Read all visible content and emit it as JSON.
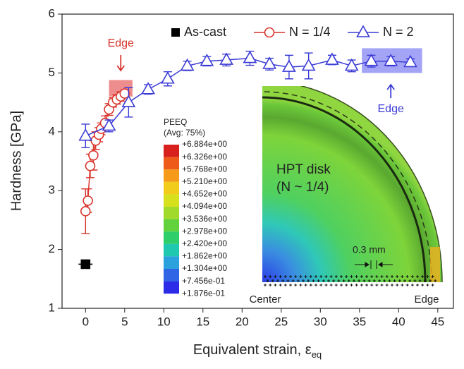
{
  "chart_data": {
    "type": "errorbar",
    "xlabel": "Equivalent strain, ε",
    "xlabel_sub": "eq",
    "ylabel": "Hardness [GPa]",
    "xlim": [
      -3,
      47
    ],
    "ylim": [
      1,
      6
    ],
    "xticks": [
      0,
      5,
      10,
      15,
      20,
      25,
      30,
      35,
      40,
      45
    ],
    "yticks": [
      1,
      2,
      3,
      4,
      5,
      6
    ],
    "legend": "top",
    "series": [
      {
        "name": "As-cast",
        "color": "#000000",
        "marker": "square",
        "line": false,
        "x": [
          0
        ],
        "values": [
          1.75
        ],
        "errors": [
          0.04
        ],
        "xerrors": [
          0.9
        ]
      },
      {
        "name": "N = 1/4",
        "color": "#d9342b",
        "marker": "circle",
        "line": true,
        "x": [
          0,
          0.3,
          0.6,
          1,
          1.3,
          1.7,
          2,
          2.5,
          3,
          3.5,
          4,
          4.5,
          5
        ],
        "values": [
          2.65,
          2.83,
          3.42,
          3.6,
          3.85,
          3.95,
          4.05,
          4.15,
          4.38,
          4.5,
          4.55,
          4.6,
          4.65
        ],
        "errors": [
          0.38,
          0.2,
          0.2,
          0.25,
          0.15,
          0.12,
          0.1,
          0.12,
          0.1,
          0.08,
          0.08,
          0.08,
          0.06
        ]
      },
      {
        "name": "N = 2",
        "color": "#3a3ad6",
        "marker": "triangle",
        "line": true,
        "x": [
          0,
          3,
          5.5,
          8,
          10.5,
          13,
          15.5,
          18,
          21,
          23.5,
          26,
          28.5,
          31.5,
          34,
          36.5,
          39,
          41.5
        ],
        "values": [
          3.93,
          4.1,
          4.5,
          4.72,
          4.9,
          5.12,
          5.2,
          5.22,
          5.25,
          5.15,
          5.1,
          5.12,
          5.22,
          5.12,
          5.2,
          5.2,
          5.18
        ],
        "errors": [
          0.2,
          0.1,
          0.25,
          0.08,
          0.12,
          0.08,
          0.08,
          0.1,
          0.12,
          0.1,
          0.2,
          0.22,
          0.08,
          0.1,
          0.1,
          0.08,
          0.06
        ]
      }
    ],
    "annotations": [
      {
        "text": "Edge",
        "color": "#d9342b"
      },
      {
        "text": "Edge",
        "color": "#3a3ad6"
      }
    ]
  },
  "inset": {
    "legend_title": "PEEQ",
    "legend_subtitle": "(Avg: 75%)",
    "levels": [
      "+6.884e+00",
      "+6.326e+00",
      "+5.768e+00",
      "+5.210e+00",
      "+4.652e+00",
      "+4.094e+00",
      "+3.536e+00",
      "+2.978e+00",
      "+2.420e+00",
      "+1.862e+00",
      "+1.304e+00",
      "+7.456e-01",
      "+1.876e-01"
    ],
    "colors": [
      "#d8201c",
      "#ee5a1a",
      "#f59a19",
      "#f2cc1a",
      "#d6e01c",
      "#a2da2b",
      "#62d23c",
      "#2ece6a",
      "#20c8b0",
      "#2ba2dd",
      "#3066e6",
      "#2c2ce8"
    ],
    "label": "HPT disk",
    "sublabel": "(N ~ 1/4)",
    "scale_label": "0.3 mm",
    "left_label": "Center",
    "right_label": "Edge"
  }
}
